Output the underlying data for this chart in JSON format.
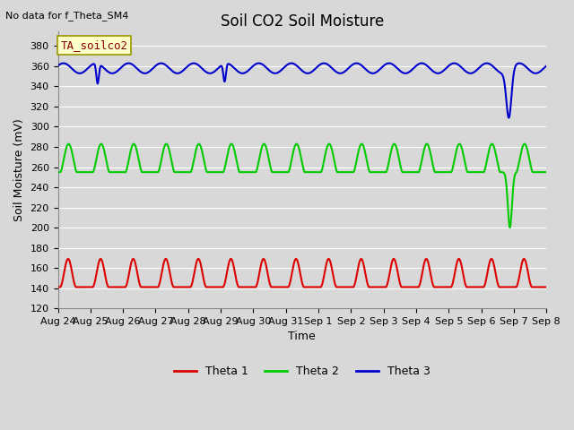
{
  "title": "Soil CO2 Soil Moisture",
  "no_data_text": "No data for f_Theta_SM4",
  "box_label": "TA_soilco2",
  "ylabel": "Soil Moisture (mV)",
  "xlabel": "Time",
  "ylim": [
    120,
    395
  ],
  "yticks": [
    120,
    140,
    160,
    180,
    200,
    220,
    240,
    260,
    280,
    300,
    320,
    340,
    360,
    380
  ],
  "x_tick_labels": [
    "Aug 24",
    "Aug 25",
    "Aug 26",
    "Aug 27",
    "Aug 28",
    "Aug 29",
    "Aug 30",
    "Aug 31",
    "Sep 1",
    "Sep 2",
    "Sep 3",
    "Sep 4",
    "Sep 5",
    "Sep 6",
    "Sep 7",
    "Sep 8"
  ],
  "background_color": "#d8d8d8",
  "plot_bg_color": "#d8d8d8",
  "grid_color": "#ffffff",
  "legend_entries": [
    "Theta 1",
    "Theta 2",
    "Theta 3"
  ],
  "legend_colors": [
    "#dd0000",
    "#00cc00",
    "#0000cc"
  ],
  "title_fontsize": 12,
  "label_fontsize": 9,
  "tick_fontsize": 8,
  "linewidth": 1.5
}
